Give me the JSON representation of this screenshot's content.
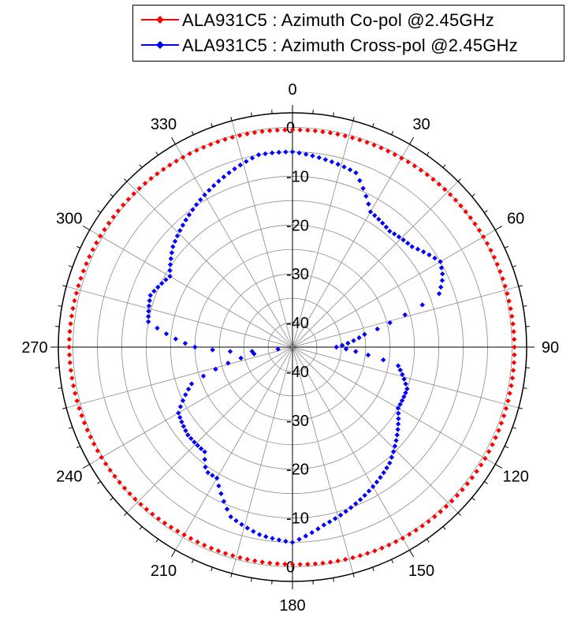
{
  "chart_data": {
    "type": "polar",
    "angle_unit": "degrees",
    "angle_zero": "top",
    "angle_direction": "clockwise",
    "angle_ticks": [
      0,
      30,
      60,
      90,
      120,
      150,
      180,
      210,
      240,
      270,
      300,
      330
    ],
    "angle_tick_labels": [
      "0",
      "30",
      "60",
      "90",
      "120",
      "150",
      "180",
      "210",
      "240",
      "270",
      "300",
      "330"
    ],
    "radial_range": [
      -45,
      3
    ],
    "radial_ticks_top": [
      "0",
      "-10",
      "-20",
      "-30",
      "-40"
    ],
    "radial_ticks_bottom": [
      "-40",
      "-30",
      "-20",
      "-10",
      "0"
    ],
    "grid": true,
    "legend_position": "top",
    "series": [
      {
        "name": "ALA931C5 : Azimuth Co-pol @2.45GHz",
        "color": "#ff0000",
        "marker": "diamond",
        "angles": [
          0,
          30,
          60,
          90,
          120,
          150,
          180,
          210,
          240,
          270,
          300,
          330,
          360
        ],
        "values": [
          -0.5,
          -0.3,
          0.2,
          0.5,
          0.6,
          0.2,
          -0.5,
          -0.6,
          0.2,
          0.8,
          0.5,
          -0.1,
          -0.5
        ]
      },
      {
        "name": "ALA931C5 : Azimuth Cross-pol @2.45GHz",
        "color": "#0000ff",
        "marker": "diamond",
        "angles": [
          0,
          10,
          20,
          30,
          40,
          50,
          60,
          65,
          70,
          75,
          80,
          85,
          90,
          95,
          100,
          110,
          120,
          130,
          140,
          150,
          160,
          170,
          180,
          190,
          200,
          210,
          215,
          220,
          230,
          240,
          250,
          255,
          260,
          262,
          265,
          270,
          275,
          280,
          290,
          300,
          310,
          320,
          330,
          340,
          350,
          360
        ],
        "values": [
          -5,
          -6,
          -7,
          -13,
          -14,
          -13,
          -10,
          -11,
          -13,
          -23,
          -30,
          -33,
          -36,
          -31,
          -23,
          -20,
          -20,
          -17,
          -14,
          -12,
          -10,
          -8,
          -5,
          -6,
          -8,
          -14,
          -14,
          -17,
          -17,
          -18,
          -23,
          -30,
          -37,
          -42,
          -34,
          -25,
          -20,
          -15,
          -14,
          -16,
          -13,
          -11,
          -9,
          -7,
          -5,
          -5
        ]
      }
    ]
  }
}
